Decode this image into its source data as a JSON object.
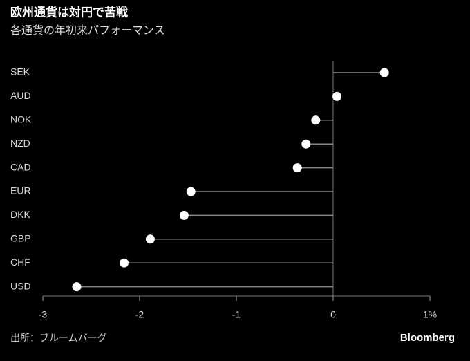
{
  "chart_data": {
    "type": "lollipop",
    "title": "欧州通貨は対円で苦戦",
    "subtitle": "各通貨の年初来パフォーマンス",
    "source": "出所：ブルームバーグ",
    "brand": "Bloomberg",
    "categories": [
      "SEK",
      "AUD",
      "NOK",
      "NZD",
      "CAD",
      "EUR",
      "DKK",
      "GBP",
      "CHF",
      "USD"
    ],
    "values": [
      0.53,
      0.04,
      -0.18,
      -0.28,
      -0.37,
      -1.47,
      -1.54,
      -1.89,
      -2.16,
      -2.65
    ],
    "color": "#ffffff",
    "xlim": [
      -3,
      1
    ],
    "xticks": [
      -3,
      -2,
      -1,
      0,
      {
        "value": 1,
        "label": "1%"
      }
    ]
  }
}
